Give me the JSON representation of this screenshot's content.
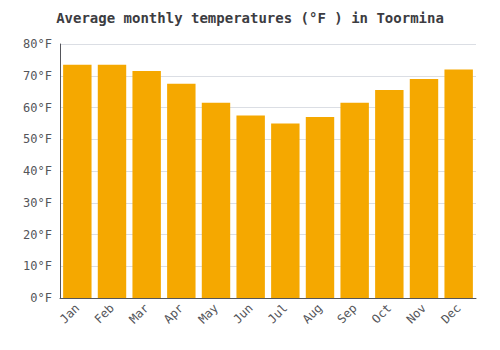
{
  "chart_data": {
    "type": "bar",
    "title": "Average monthly temperatures (°F ) in Toormina",
    "categories": [
      "Jan",
      "Feb",
      "Mar",
      "Apr",
      "May",
      "Jun",
      "Jul",
      "Aug",
      "Sep",
      "Oct",
      "Nov",
      "Dec"
    ],
    "values": [
      73.5,
      73.5,
      71.5,
      67.5,
      61.5,
      57.5,
      55.0,
      57.0,
      61.5,
      65.5,
      69.0,
      72.0
    ],
    "color": "#F5A800",
    "ylim": [
      0,
      80
    ],
    "yticks": [
      {
        "value": 0,
        "label": "0°F"
      },
      {
        "value": 10,
        "label": "10°F"
      },
      {
        "value": 20,
        "label": "20°F"
      },
      {
        "value": 30,
        "label": "30°F"
      },
      {
        "value": 40,
        "label": "40°F"
      },
      {
        "value": 50,
        "label": "50°F"
      },
      {
        "value": 60,
        "label": "60°F"
      },
      {
        "value": 70,
        "label": "70°F"
      },
      {
        "value": 80,
        "label": "80°F"
      }
    ],
    "grid": true
  }
}
